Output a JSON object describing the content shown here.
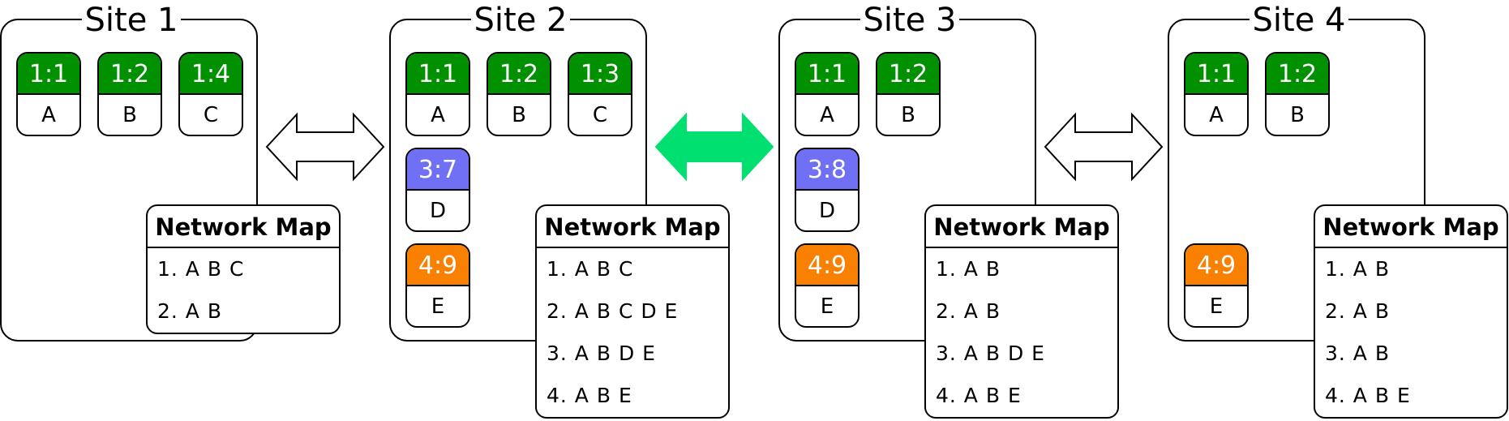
{
  "colors": {
    "green": "#009000",
    "blue": "#7070f4",
    "orange": "#f98000",
    "active_arrow": "#00e070",
    "inactive_arrow": "#ffffff"
  },
  "sites": [
    {
      "title": "Site 1",
      "nodes": [
        {
          "tag": "1:1",
          "letter": "A",
          "color": "green"
        },
        {
          "tag": "1:2",
          "letter": "B",
          "color": "green"
        },
        {
          "tag": "1:4",
          "letter": "C",
          "color": "green"
        }
      ],
      "network_map": {
        "title": "Network Map",
        "rows": [
          "1. A B C",
          "2. A B"
        ]
      }
    },
    {
      "title": "Site 2",
      "nodes": [
        {
          "tag": "1:1",
          "letter": "A",
          "color": "green"
        },
        {
          "tag": "1:2",
          "letter": "B",
          "color": "green"
        },
        {
          "tag": "1:3",
          "letter": "C",
          "color": "green"
        },
        {
          "tag": "3:7",
          "letter": "D",
          "color": "blue"
        },
        {
          "tag": "4:9",
          "letter": "E",
          "color": "orange"
        }
      ],
      "network_map": {
        "title": "Network Map",
        "rows": [
          "1. A B C",
          "2. A B C D E",
          "3. A B D E",
          "4. A B E"
        ]
      }
    },
    {
      "title": "Site 3",
      "nodes": [
        {
          "tag": "1:1",
          "letter": "A",
          "color": "green"
        },
        {
          "tag": "1:2",
          "letter": "B",
          "color": "green"
        },
        {
          "tag": "3:8",
          "letter": "D",
          "color": "blue"
        },
        {
          "tag": "4:9",
          "letter": "E",
          "color": "orange"
        }
      ],
      "network_map": {
        "title": "Network Map",
        "rows": [
          "1. A B",
          "2. A B",
          "3. A B D E",
          "4. A B E"
        ]
      }
    },
    {
      "title": "Site 4",
      "nodes": [
        {
          "tag": "1:1",
          "letter": "A",
          "color": "green"
        },
        {
          "tag": "1:2",
          "letter": "B",
          "color": "green"
        },
        {
          "tag": "4:9",
          "letter": "E",
          "color": "orange"
        }
      ],
      "network_map": {
        "title": "Network Map",
        "rows": [
          "1. A B",
          "2. A B",
          "3. A B",
          "4. A B E"
        ]
      }
    }
  ],
  "connectors": [
    {
      "between": "Site 1 - Site 2",
      "style": "inactive"
    },
    {
      "between": "Site 2 - Site 3",
      "style": "active"
    },
    {
      "between": "Site 3 - Site 4",
      "style": "inactive"
    }
  ]
}
